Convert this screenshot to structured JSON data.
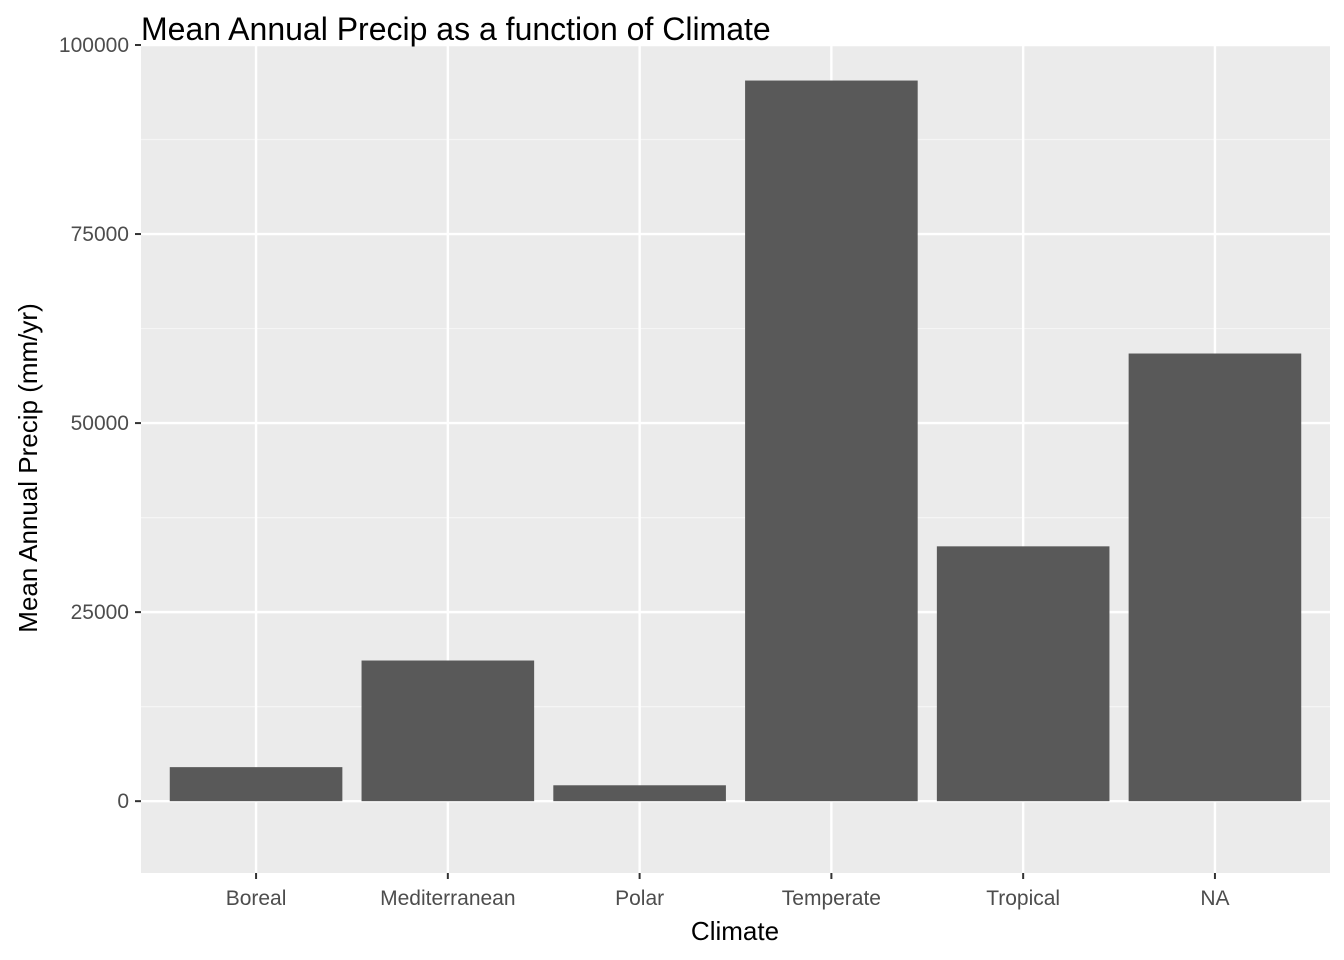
{
  "chart_data": {
    "type": "bar",
    "title": "Mean Annual Precip as a function of Climate",
    "xlabel": "Climate",
    "ylabel": "Mean Annual Precip (mm/yr)",
    "categories": [
      "Boreal",
      "Mediterranean",
      "Polar",
      "Temperate",
      "Tropical",
      "NA"
    ],
    "values": [
      4500,
      18600,
      2100,
      95300,
      33700,
      59200
    ],
    "ylim": [
      -9500,
      100000
    ],
    "yticks": [
      0,
      25000,
      50000,
      75000,
      100000
    ],
    "ytick_labels": [
      "0",
      "25000",
      "50000",
      "75000",
      "100000"
    ],
    "grid": true,
    "legend": "none",
    "colors": {
      "bar": "#595959",
      "panel": "#ebebeb",
      "grid_major": "#ffffff",
      "grid_minor": "#f5f5f5",
      "tick": "#333333"
    }
  }
}
